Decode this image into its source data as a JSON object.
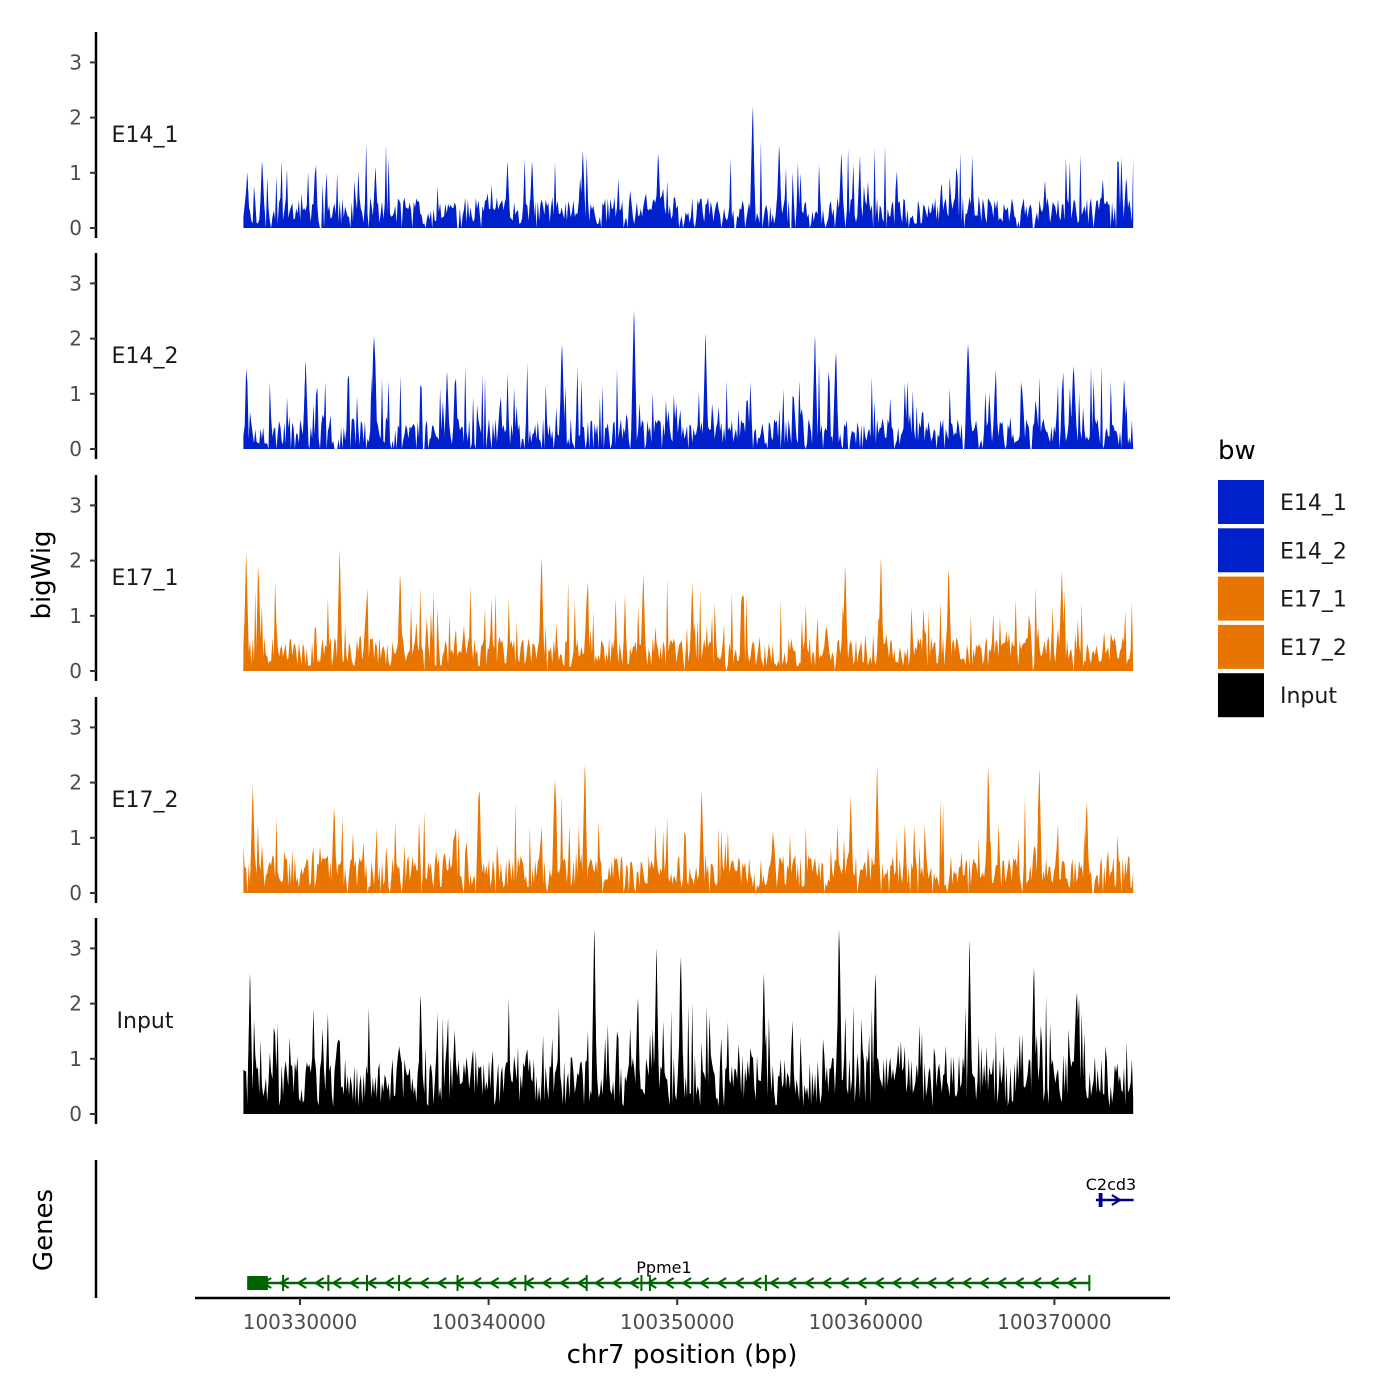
{
  "chart_data": {
    "type": "area",
    "ylabel": "bigWig",
    "genes_label": "Genes",
    "xlabel": "chr7 position (bp)",
    "xlim": [
      100322000,
      100375000
    ],
    "ylim": [
      0,
      3.5
    ],
    "yticks": [
      0,
      1,
      2,
      3
    ],
    "ytick_labels": [
      "0",
      "1",
      "2",
      "3"
    ],
    "xticks": [
      100330000,
      100340000,
      100350000,
      100360000,
      100370000
    ],
    "xtick_labels": [
      "100330000",
      "100340000",
      "100350000",
      "100360000",
      "100370000"
    ],
    "data_range": [
      100327000,
      100374200
    ],
    "legend": {
      "title": "bw",
      "entries": [
        {
          "name": "E14_1",
          "color": "#0020CC"
        },
        {
          "name": "E14_2",
          "color": "#0020CC"
        },
        {
          "name": "E17_1",
          "color": "#E87500"
        },
        {
          "name": "E17_2",
          "color": "#E87500"
        },
        {
          "name": "Input",
          "color": "#000000"
        }
      ]
    },
    "tracks": [
      {
        "name": "E14_1",
        "color": "#0020CC",
        "seed": 11,
        "base": 0.45,
        "peak_prob": 0.16,
        "gap_prob": 0.07,
        "peaks": [
          {
            "pos": 100327200,
            "value": 1.0
          },
          {
            "pos": 100328000,
            "value": 1.2
          },
          {
            "pos": 100330800,
            "value": 0.95
          },
          {
            "pos": 100334000,
            "value": 1.1
          },
          {
            "pos": 100341000,
            "value": 1.2
          },
          {
            "pos": 100342300,
            "value": 1.2
          },
          {
            "pos": 100345000,
            "value": 1.4
          },
          {
            "pos": 100349000,
            "value": 1.35
          },
          {
            "pos": 100354000,
            "value": 2.2
          },
          {
            "pos": 100355400,
            "value": 1.5
          },
          {
            "pos": 100358700,
            "value": 1.35
          },
          {
            "pos": 100364000,
            "value": 0.8
          },
          {
            "pos": 100369500,
            "value": 0.85
          },
          {
            "pos": 100373800,
            "value": 0.9
          }
        ]
      },
      {
        "name": "E14_2",
        "color": "#0020CC",
        "seed": 23,
        "base": 0.45,
        "peak_prob": 0.22,
        "gap_prob": 0.08,
        "peaks": [
          {
            "pos": 100330300,
            "value": 1.6
          },
          {
            "pos": 100333900,
            "value": 2.05
          },
          {
            "pos": 100337800,
            "value": 1.4
          },
          {
            "pos": 100343900,
            "value": 1.9
          },
          {
            "pos": 100347700,
            "value": 2.5
          },
          {
            "pos": 100351500,
            "value": 2.1
          },
          {
            "pos": 100357300,
            "value": 2.05
          },
          {
            "pos": 100358400,
            "value": 1.75
          },
          {
            "pos": 100365400,
            "value": 1.9
          },
          {
            "pos": 100371000,
            "value": 1.5
          },
          {
            "pos": 100373700,
            "value": 1.25
          }
        ]
      },
      {
        "name": "E17_1",
        "color": "#E87500",
        "seed": 37,
        "base": 0.5,
        "peak_prob": 0.2,
        "gap_prob": 0.015,
        "peaks": [
          {
            "pos": 100327150,
            "value": 2.15
          },
          {
            "pos": 100327800,
            "value": 1.9
          },
          {
            "pos": 100332100,
            "value": 2.2
          },
          {
            "pos": 100335300,
            "value": 1.75
          },
          {
            "pos": 100342800,
            "value": 2.05
          },
          {
            "pos": 100348200,
            "value": 1.75
          },
          {
            "pos": 100350800,
            "value": 1.6
          },
          {
            "pos": 100358900,
            "value": 1.9
          },
          {
            "pos": 100360800,
            "value": 2.05
          },
          {
            "pos": 100364400,
            "value": 1.85
          },
          {
            "pos": 100370400,
            "value": 1.8
          }
        ]
      },
      {
        "name": "E17_2",
        "color": "#E87500",
        "seed": 53,
        "base": 0.55,
        "peak_prob": 0.2,
        "gap_prob": 0.05,
        "peaks": [
          {
            "pos": 100327500,
            "value": 1.95
          },
          {
            "pos": 100331800,
            "value": 1.55
          },
          {
            "pos": 100339500,
            "value": 1.85
          },
          {
            "pos": 100343500,
            "value": 2.05
          },
          {
            "pos": 100345100,
            "value": 2.35
          },
          {
            "pos": 100351300,
            "value": 1.85
          },
          {
            "pos": 100359200,
            "value": 1.75
          },
          {
            "pos": 100360600,
            "value": 2.3
          },
          {
            "pos": 100366500,
            "value": 2.3
          },
          {
            "pos": 100369200,
            "value": 2.25
          },
          {
            "pos": 100371700,
            "value": 1.65
          }
        ]
      },
      {
        "name": "Input",
        "color": "#000000",
        "seed": 71,
        "base": 0.85,
        "peak_prob": 0.25,
        "gap_prob": 0.0,
        "peaks": [
          {
            "pos": 100327350,
            "value": 2.55
          },
          {
            "pos": 100336400,
            "value": 2.15
          },
          {
            "pos": 100345600,
            "value": 3.35
          },
          {
            "pos": 100347900,
            "value": 2.1
          },
          {
            "pos": 100348900,
            "value": 3.0
          },
          {
            "pos": 100350200,
            "value": 2.85
          },
          {
            "pos": 100354600,
            "value": 2.55
          },
          {
            "pos": 100358600,
            "value": 3.35
          },
          {
            "pos": 100360500,
            "value": 2.55
          },
          {
            "pos": 100365500,
            "value": 3.15
          },
          {
            "pos": 100368900,
            "value": 2.65
          },
          {
            "pos": 100371200,
            "value": 2.2
          }
        ]
      }
    ],
    "genes": [
      {
        "name": "Ppme1",
        "strand": "-",
        "color": "#006400",
        "start": 100327200,
        "end": 100371900,
        "label_pos": 100349300,
        "exons": [
          {
            "start": 100327200,
            "end": 100328300,
            "thick": true
          },
          {
            "start": 100329050,
            "end": 100329150
          },
          {
            "start": 100331450,
            "end": 100331550
          },
          {
            "start": 100333500,
            "end": 100333600
          },
          {
            "start": 100335200,
            "end": 100335300
          },
          {
            "start": 100338300,
            "end": 100338400
          },
          {
            "start": 100341900,
            "end": 100342000
          },
          {
            "start": 100345150,
            "end": 100345250
          },
          {
            "start": 100348050,
            "end": 100348150
          },
          {
            "start": 100348500,
            "end": 100348600
          },
          {
            "start": 100354650,
            "end": 100354750
          },
          {
            "start": 100371800,
            "end": 100371900
          }
        ]
      },
      {
        "name": "C2cd3",
        "strand": "+",
        "color": "#00008B",
        "start": 100372200,
        "end": 100374200,
        "label_pos": 100373000,
        "exons": [
          {
            "start": 100372350,
            "end": 100372550,
            "thick": true
          }
        ]
      }
    ]
  }
}
